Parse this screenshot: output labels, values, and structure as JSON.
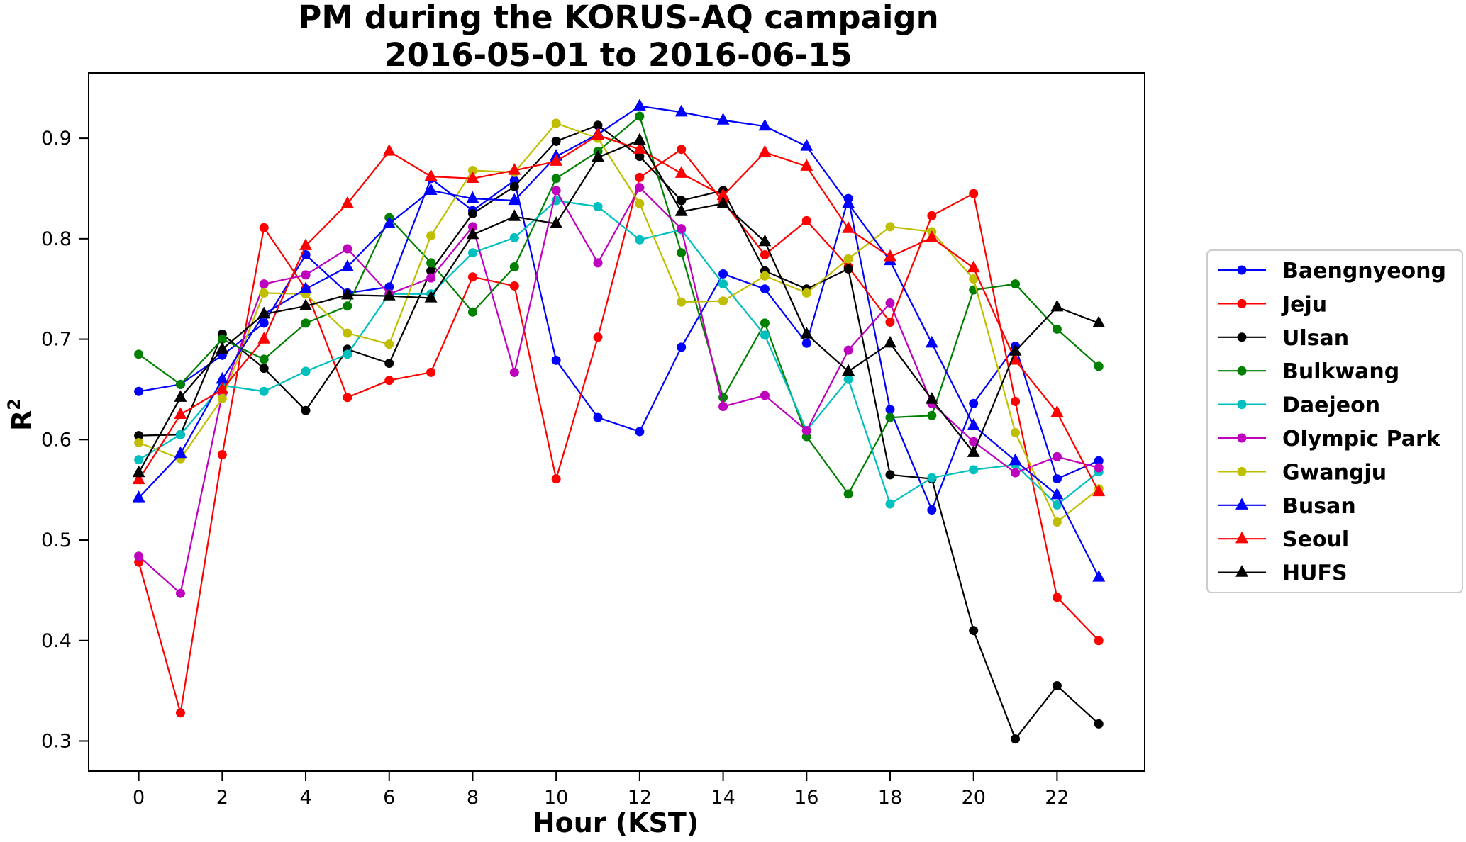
{
  "chart_data": {
    "type": "line",
    "title_line1": "PM during the KORUS-AQ campaign",
    "title_line2": "2016-05-01 to 2016-06-15",
    "xlabel": "Hour (KST)",
    "ylabel": "R",
    "ylabel_superscript": "2",
    "xlim": [
      -1.2,
      24.1
    ],
    "ylim": [
      0.27,
      0.965
    ],
    "x_ticks": [
      0,
      2,
      4,
      6,
      8,
      10,
      12,
      14,
      16,
      18,
      20,
      22
    ],
    "y_ticks": [
      0.3,
      0.4,
      0.5,
      0.6,
      0.7,
      0.8,
      0.9
    ],
    "legend_position": "right",
    "x": [
      0,
      1,
      2,
      3,
      4,
      5,
      6,
      7,
      8,
      9,
      10,
      11,
      12,
      13,
      14,
      15,
      16,
      17,
      18,
      19,
      20,
      21,
      22,
      23
    ],
    "series": [
      {
        "name": "Baengnyeong",
        "color": "#0000ff",
        "marker": "circle",
        "values": [
          0.648,
          0.655,
          0.684,
          0.716,
          0.784,
          0.746,
          0.752,
          0.86,
          0.828,
          0.858,
          0.679,
          0.622,
          0.608,
          0.692,
          0.765,
          0.75,
          0.696,
          0.84,
          0.63,
          0.53,
          0.636,
          0.693,
          0.561,
          0.579
        ]
      },
      {
        "name": "Jeju",
        "color": "#ff0000",
        "marker": "circle",
        "values": [
          0.478,
          0.328,
          0.585,
          0.811,
          0.75,
          0.642,
          0.659,
          0.667,
          0.762,
          0.753,
          0.561,
          0.702,
          0.861,
          0.889,
          0.837,
          0.784,
          0.818,
          0.772,
          0.717,
          0.823,
          0.845,
          0.638,
          0.443,
          0.4
        ]
      },
      {
        "name": "Ulsan",
        "color": "#000000",
        "marker": "circle",
        "values": [
          0.604,
          0.605,
          0.705,
          0.671,
          0.629,
          0.69,
          0.676,
          0.768,
          0.825,
          0.852,
          0.897,
          0.913,
          0.882,
          0.838,
          0.848,
          0.768,
          0.75,
          0.77,
          0.565,
          0.561,
          0.41,
          0.302,
          0.355,
          0.317
        ]
      },
      {
        "name": "Bulkwang",
        "color": "#008000",
        "marker": "circle",
        "values": [
          0.685,
          0.655,
          0.7,
          0.68,
          0.716,
          0.733,
          0.821,
          0.776,
          0.727,
          0.772,
          0.86,
          0.887,
          0.922,
          0.786,
          0.642,
          0.716,
          0.603,
          0.546,
          0.622,
          0.624,
          0.749,
          0.755,
          0.71,
          0.673
        ]
      },
      {
        "name": "Daejeon",
        "color": "#00bfbf",
        "marker": "circle",
        "values": [
          0.58,
          0.605,
          0.654,
          0.648,
          0.668,
          0.685,
          0.745,
          0.745,
          0.786,
          0.801,
          0.838,
          0.832,
          0.799,
          0.809,
          0.755,
          0.704,
          0.609,
          0.66,
          0.536,
          0.562,
          0.57,
          0.575,
          0.535,
          0.568
        ]
      },
      {
        "name": "Olympic Park",
        "color": "#bf00bf",
        "marker": "circle",
        "values": [
          0.484,
          0.447,
          0.645,
          0.755,
          0.764,
          0.79,
          0.745,
          0.761,
          0.812,
          0.667,
          0.848,
          0.776,
          0.851,
          0.81,
          0.633,
          0.644,
          0.609,
          0.689,
          0.736,
          0.636,
          0.598,
          0.567,
          0.583,
          0.572
        ]
      },
      {
        "name": "Gwangju",
        "color": "#bfbf00",
        "marker": "circle",
        "values": [
          0.597,
          0.581,
          0.641,
          0.746,
          0.745,
          0.706,
          0.695,
          0.803,
          0.868,
          0.866,
          0.915,
          0.9,
          0.835,
          0.737,
          0.738,
          0.763,
          0.746,
          0.78,
          0.812,
          0.807,
          0.76,
          0.607,
          0.518,
          0.551
        ]
      },
      {
        "name": "Busan",
        "color": "#0000ff",
        "marker": "triangle",
        "values": [
          0.542,
          0.586,
          0.66,
          0.725,
          0.75,
          0.772,
          0.815,
          0.848,
          0.84,
          0.838,
          0.882,
          0.904,
          0.932,
          0.926,
          0.918,
          0.912,
          0.892,
          0.835,
          0.778,
          0.696,
          0.614,
          0.579,
          0.545,
          0.463
        ]
      },
      {
        "name": "Seoul",
        "color": "#ff0000",
        "marker": "triangle",
        "values": [
          0.56,
          0.625,
          0.65,
          0.7,
          0.793,
          0.835,
          0.887,
          0.862,
          0.86,
          0.868,
          0.877,
          0.903,
          0.889,
          0.865,
          0.843,
          0.886,
          0.872,
          0.81,
          0.782,
          0.801,
          0.771,
          0.679,
          0.627,
          0.548
        ]
      },
      {
        "name": "HUFS",
        "color": "#000000",
        "marker": "triangle",
        "values": [
          0.567,
          0.642,
          0.69,
          0.725,
          0.733,
          0.744,
          0.743,
          0.741,
          0.804,
          0.822,
          0.815,
          0.881,
          0.898,
          0.827,
          0.835,
          0.797,
          0.705,
          0.668,
          0.696,
          0.64,
          0.587,
          0.688,
          0.732,
          0.716
        ]
      }
    ]
  }
}
